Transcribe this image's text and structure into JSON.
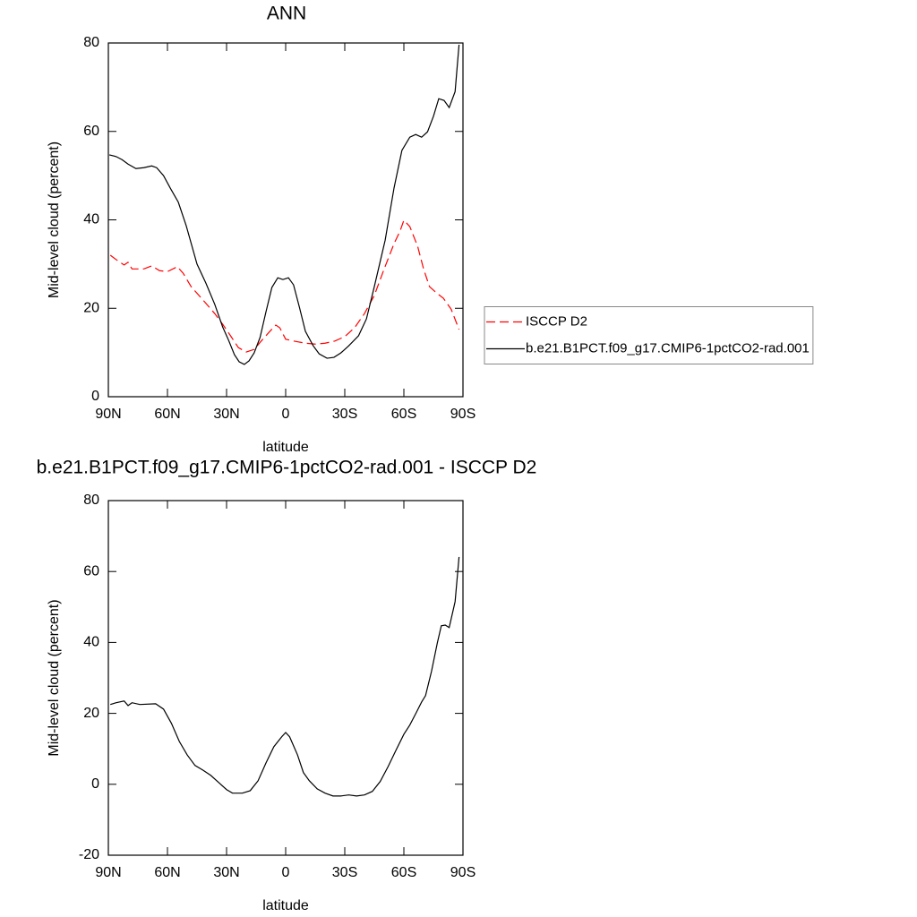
{
  "chart_data": [
    {
      "type": "line",
      "title": "ANN",
      "x_label": "latitude",
      "y_label": "Mid-level cloud (percent)",
      "xlim": [
        90,
        -90
      ],
      "xticks": [
        {
          "value": 90,
          "label": "90N"
        },
        {
          "value": 60,
          "label": "60N"
        },
        {
          "value": 30,
          "label": "30N"
        },
        0,
        {
          "value": -30,
          "label": "30S"
        },
        {
          "value": -60,
          "label": "60S"
        },
        {
          "value": -90,
          "label": "90S"
        }
      ],
      "ylim": [
        0,
        80
      ],
      "yticks": [
        0,
        20,
        40,
        60,
        80
      ],
      "legend": "right",
      "series": [
        {
          "name": "ISCCP D2",
          "color": "#ff0000",
          "line_style": "dashed",
          "x": [
            89,
            86,
            82,
            80,
            78,
            72,
            68,
            64,
            60,
            55,
            52,
            48,
            42,
            36,
            32,
            28,
            24,
            20,
            16,
            12,
            8,
            5,
            3,
            0,
            -4,
            -10,
            -15,
            -20,
            -25,
            -30,
            -35,
            -40,
            -45,
            -50,
            -55,
            -58,
            -60,
            -63,
            -67,
            -70,
            -73,
            -77,
            -80,
            -84,
            -88
          ],
          "values": [
            32,
            31,
            29.8,
            30.4,
            28.9,
            28.9,
            29.6,
            28.5,
            28.3,
            29.4,
            27.9,
            24.9,
            21.9,
            18.8,
            16.4,
            13.8,
            11.1,
            10.1,
            10.7,
            12.8,
            14.8,
            16.2,
            15.6,
            13,
            12.6,
            12.1,
            11.9,
            12.1,
            12.6,
            13.6,
            15.6,
            18.8,
            22.9,
            28.9,
            34.6,
            37.4,
            39.9,
            38.5,
            34,
            28.9,
            24.9,
            23.3,
            22.3,
            19.8,
            15.2
          ]
        },
        {
          "name": "b.e21.B1PCT.f09_g17.CMIP6-1pctCO2-rad.001",
          "color": "#000000",
          "line_style": "solid",
          "x": [
            89.5,
            86,
            83,
            80,
            76,
            72,
            68,
            65.5,
            62,
            58.6,
            54.5,
            50.5,
            45,
            40.5,
            36,
            32,
            29,
            26,
            23.6,
            21,
            18.6,
            16,
            13,
            10,
            7,
            4,
            1.4,
            -1.4,
            -4,
            -7,
            -10,
            -14,
            -17,
            -21,
            -24.5,
            -28,
            -32,
            -37,
            -41,
            -45,
            -50.5,
            -55,
            -59,
            -63,
            -66,
            -69,
            -72,
            -75,
            -77.7,
            -80.4,
            -83,
            -86,
            -88
          ],
          "values": [
            54.7,
            54.3,
            53.6,
            52.6,
            51.6,
            51.8,
            52.2,
            51.8,
            50,
            47.2,
            44,
            38.7,
            30,
            25.7,
            20.9,
            15.8,
            12.8,
            9.5,
            7.9,
            7.3,
            8.1,
            9.9,
            13.4,
            19.2,
            24.7,
            26.9,
            26.5,
            26.9,
            25.3,
            20.2,
            14.8,
            11.5,
            9.7,
            8.7,
            8.9,
            9.9,
            11.5,
            13.8,
            17.6,
            24.9,
            35.4,
            47.2,
            55.7,
            58.7,
            59.3,
            58.7,
            59.9,
            63.4,
            67.4,
            67,
            65.4,
            69,
            79.6
          ]
        }
      ]
    },
    {
      "type": "line",
      "title": "b.e21.B1PCT.f09_g17.CMIP6-1pctCO2-rad.001 - ISCCP D2",
      "x_label": "latitude",
      "y_label": "Mid-level cloud (percent)",
      "xlim": [
        90,
        -90
      ],
      "xticks": [
        {
          "value": 90,
          "label": "90N"
        },
        {
          "value": 60,
          "label": "60N"
        },
        {
          "value": 30,
          "label": "30N"
        },
        0,
        {
          "value": -30,
          "label": "30S"
        },
        {
          "value": -60,
          "label": "60S"
        },
        {
          "value": -90,
          "label": "90S"
        }
      ],
      "ylim": [
        -20,
        80
      ],
      "yticks": [
        -20,
        0,
        20,
        40,
        60,
        80
      ],
      "series": [
        {
          "color": "#000000",
          "line_style": "solid",
          "x": [
            89,
            86,
            82,
            80,
            78,
            74,
            66,
            62,
            58,
            54,
            50,
            46,
            42,
            38,
            34,
            30,
            27,
            22,
            18,
            14,
            10,
            6,
            2,
            0,
            -2,
            -6,
            -9,
            -12,
            -16,
            -20,
            -24,
            -28,
            -32,
            -36,
            -40,
            -44,
            -48,
            -52,
            -56,
            -60,
            -63,
            -66,
            -69,
            -71,
            -74,
            -77,
            -79,
            -81,
            -83,
            -86,
            -88
          ],
          "values": [
            22.5,
            23,
            23.5,
            22.2,
            23,
            22.5,
            22.7,
            21.2,
            17.2,
            12.1,
            8.3,
            5.3,
            4,
            2.5,
            0.5,
            -1.5,
            -2.5,
            -2.5,
            -1.8,
            1,
            6,
            10.6,
            13.4,
            14.6,
            13.4,
            8.3,
            3.3,
            1,
            -1.3,
            -2.5,
            -3.3,
            -3.3,
            -3,
            -3.3,
            -3,
            -2,
            0.8,
            5,
            9.6,
            14.1,
            16.7,
            19.9,
            23.2,
            25,
            31.8,
            39.9,
            44.7,
            44.9,
            44.2,
            51.5,
            64.1
          ]
        }
      ]
    }
  ]
}
